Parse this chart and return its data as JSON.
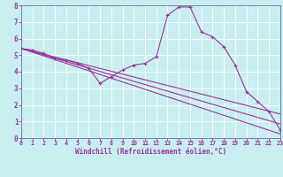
{
  "xlabel": "Windchill (Refroidissement éolien,°C)",
  "bg_color": "#c8eef0",
  "grid_color": "#ffffff",
  "line_color": "#993399",
  "spine_color": "#6666aa",
  "xlim": [
    0,
    23
  ],
  "ylim": [
    0,
    8
  ],
  "xticks": [
    0,
    1,
    2,
    3,
    4,
    5,
    6,
    7,
    8,
    9,
    10,
    11,
    12,
    13,
    14,
    15,
    16,
    17,
    18,
    19,
    20,
    21,
    22,
    23
  ],
  "yticks": [
    0,
    1,
    2,
    3,
    4,
    5,
    6,
    7,
    8
  ],
  "line1_x": [
    0,
    1,
    2,
    3,
    4,
    5,
    6,
    7,
    8,
    9,
    10,
    11,
    12,
    13,
    14,
    15,
    16,
    17,
    18,
    19,
    20,
    21,
    22,
    23
  ],
  "line1_y": [
    5.4,
    5.3,
    5.1,
    4.8,
    4.7,
    4.5,
    4.2,
    3.3,
    3.7,
    4.1,
    4.4,
    4.5,
    4.9,
    7.4,
    7.9,
    7.9,
    6.4,
    6.1,
    5.5,
    4.4,
    2.8,
    2.2,
    1.6,
    0.5
  ],
  "ref_lines": [
    {
      "x": [
        0,
        23
      ],
      "y": [
        5.4,
        0.25
      ]
    },
    {
      "x": [
        0,
        23
      ],
      "y": [
        5.4,
        0.85
      ]
    },
    {
      "x": [
        0,
        23
      ],
      "y": [
        5.4,
        1.45
      ]
    }
  ]
}
